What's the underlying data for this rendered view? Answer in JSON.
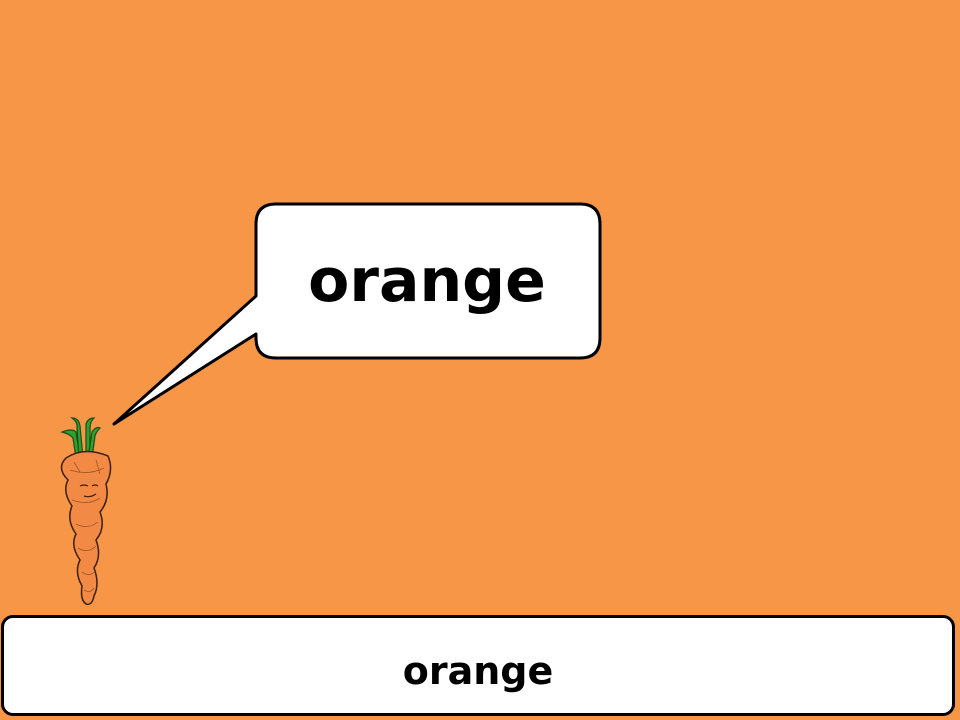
{
  "speech_bubble": {
    "text": "orange"
  },
  "caption": {
    "text": "orange"
  },
  "illustration": {
    "icon": "carrot-icon"
  },
  "colors": {
    "background": "#f79646",
    "carrot": "#f28a45",
    "carrot_top": "#2ea12e",
    "bubble": "#ffffff",
    "outline": "#000000"
  }
}
